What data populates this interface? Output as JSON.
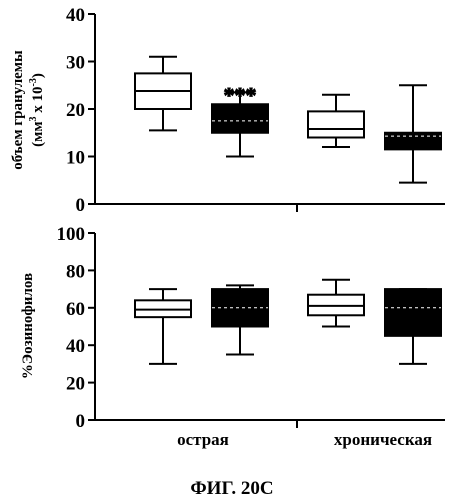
{
  "figure": {
    "caption": "ФИГ. 20С"
  },
  "groups": [
    "острая",
    "хроническая"
  ],
  "chart_data": [
    {
      "type": "box",
      "ylabel_line1": "объем гранулемы",
      "ylabel_line2": "(мм",
      "ylabel_sup1": "3",
      "ylabel_mid": " x 10",
      "ylabel_sup2": "-3",
      "ylabel_end": ")",
      "ylim": [
        0,
        40
      ],
      "yticks": [
        "0",
        "10",
        "20",
        "30",
        "40"
      ],
      "boxes": [
        {
          "group": "острая",
          "fill": "#ffffff",
          "min": 15.5,
          "q1": 20,
          "median": 23.8,
          "q3": 27.5,
          "max": 31
        },
        {
          "group": "острая",
          "fill": "#000000",
          "min": 10,
          "q1": 15,
          "median": 17.5,
          "q3": 21,
          "max": 23.5
        },
        {
          "group": "хроническая",
          "fill": "#ffffff",
          "min": 12,
          "q1": 14,
          "median": 15.8,
          "q3": 19.5,
          "max": 23
        },
        {
          "group": "хроническая",
          "fill": "#000000",
          "min": 4.5,
          "q1": 11.5,
          "median": 14.3,
          "q3": 15,
          "max": 25
        }
      ],
      "annotations": [
        {
          "box_index": 1,
          "text": "***"
        }
      ]
    },
    {
      "type": "box",
      "ylabel_line1": "%Эозинофилов",
      "ylim": [
        0,
        100
      ],
      "yticks": [
        "0",
        "20",
        "40",
        "60",
        "80",
        "100"
      ],
      "boxes": [
        {
          "group": "острая",
          "fill": "#ffffff",
          "min": 30,
          "q1": 55,
          "median": 59,
          "q3": 64,
          "max": 70
        },
        {
          "group": "острая",
          "fill": "#000000",
          "min": 35,
          "q1": 50,
          "median": 60,
          "q3": 70,
          "max": 72
        },
        {
          "group": "хроническая",
          "fill": "#ffffff",
          "min": 50,
          "q1": 56,
          "median": 61,
          "q3": 67,
          "max": 75
        },
        {
          "group": "хроническая",
          "fill": "#000000",
          "min": 30,
          "q1": 45,
          "median": 60,
          "q3": 70,
          "max": 70
        }
      ],
      "annotations": []
    }
  ]
}
